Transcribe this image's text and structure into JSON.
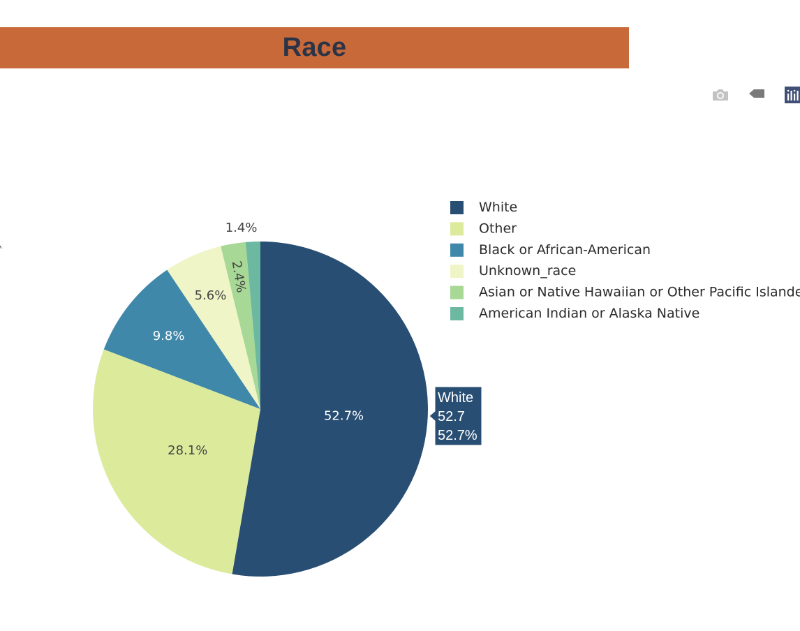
{
  "header": {
    "title": "Race",
    "bar_color": "#c8693a"
  },
  "modebar": {
    "buttons": [
      {
        "icon": "camera-icon",
        "color": "#c3c3c3"
      },
      {
        "icon": "tag-icon",
        "color": "#7a7a7a"
      },
      {
        "icon": "plotly-logo-icon",
        "color": "#3f4f75"
      }
    ]
  },
  "chart_data": {
    "type": "pie",
    "title": "Race",
    "labels": [
      "White",
      "Other",
      "Black or African-American",
      "Unknown_race",
      "Asian or Native Hawaiian or Other Pacific Islander",
      "American Indian or Alaska Native"
    ],
    "values": [
      52.7,
      28.1,
      9.8,
      5.6,
      2.4,
      1.4
    ],
    "percent_labels": [
      "52.7%",
      "28.1%",
      "9.8%",
      "5.6%",
      "2.4%",
      "1.4%"
    ],
    "colors": [
      "#294e73",
      "#dcea9c",
      "#3f88aa",
      "#eff5c6",
      "#a7d896",
      "#6db8a0"
    ],
    "label_text_colors": [
      "#ffffff",
      "#444444",
      "#ffffff",
      "#444444",
      "#444444",
      "#444444"
    ],
    "direction": "clockwise",
    "legend_position": "right",
    "hover": {
      "label": "White",
      "value": "52.7",
      "percent": "52.7%",
      "color": "#294e73"
    }
  }
}
